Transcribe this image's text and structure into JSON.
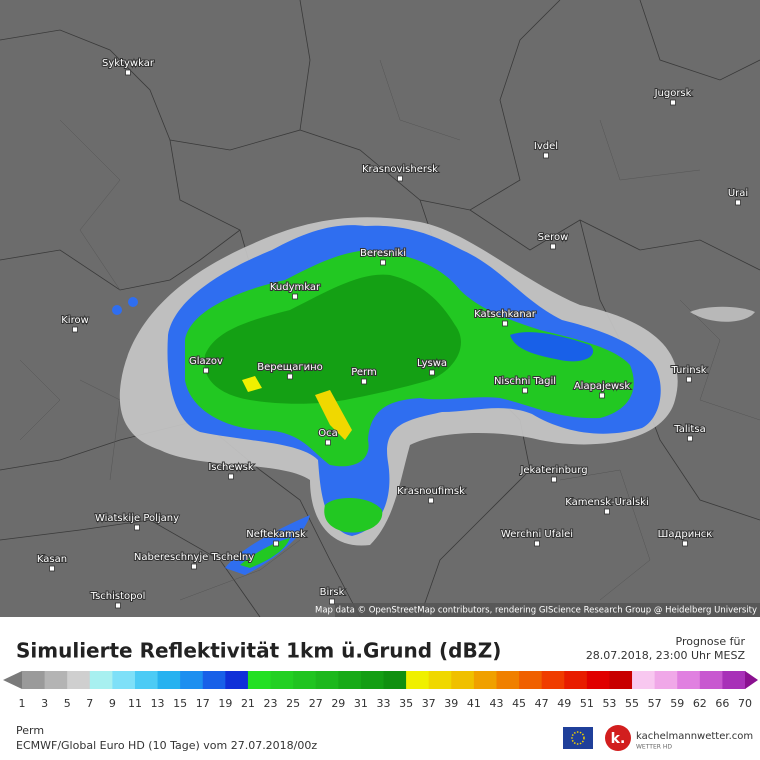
{
  "map": {
    "cities": [
      "Syktywkar",
      "Jugorsk",
      "Ivdel",
      "Krasnovishersk",
      "Urai",
      "Serow",
      "Beresniki",
      "Kudymkar",
      "Kirow",
      "Katschkanar",
      "Glazov",
      "Верещагино",
      "Perm",
      "Lyswa",
      "Turinsk",
      "Nischni Tagil",
      "Alapajewsk",
      "Oca",
      "Talitsa",
      "Ischewsk",
      "Jekaterinburg",
      "Krasnoufimsk",
      "Kamensk-Uralski",
      "Wiatskije Poljany",
      "Neftekamsk",
      "Werchni Ufalei",
      "Шадринск",
      "Nabereschnyje Tschelny",
      "Kasan",
      "Tschistopol",
      "Birsk"
    ],
    "attribution": "Map data © OpenStreetMap contributors, rendering GIScience Research Group @ Heidelberg University"
  },
  "header": {
    "title": "Simulierte Reflektivität 1km ü.Grund (dBZ)",
    "forecast_label": "Prognose für",
    "forecast_time": "28.07.2018, 23:00 Uhr MESZ"
  },
  "legend": {
    "labels": [
      1,
      3,
      5,
      7,
      9,
      11,
      13,
      15,
      17,
      19,
      21,
      23,
      25,
      27,
      29,
      31,
      33,
      35,
      37,
      39,
      41,
      43,
      45,
      47,
      49,
      51,
      53,
      55,
      57,
      59,
      62,
      66,
      70
    ],
    "colors": [
      "#9a9a9a",
      "#b4b4b4",
      "#cfcfcf",
      "#a8f0f0",
      "#7ee0f8",
      "#4ccbf5",
      "#27b2f0",
      "#1d8ff0",
      "#1860e8",
      "#1030d8",
      "#22e022",
      "#22d022",
      "#20c420",
      "#1db81d",
      "#18aa18",
      "#149e14",
      "#109010",
      "#f0f000",
      "#f0d800",
      "#f0c000",
      "#f0a000",
      "#f08000",
      "#f06000",
      "#f03c00",
      "#e81c00",
      "#e00000",
      "#c80000",
      "#f8c8f0",
      "#f0a8e8",
      "#e080e0",
      "#c858d0",
      "#a830b8"
    ],
    "under_color": "#7a7a7a",
    "over_color": "#8a1090"
  },
  "footer": {
    "location": "Perm",
    "model": "ECMWF/Global Euro HD (10 Tage) vom 27.07.2018/00z",
    "brand": "kachelmannwetter.com",
    "brand_sub": "WETTER HD",
    "logo": "k."
  }
}
